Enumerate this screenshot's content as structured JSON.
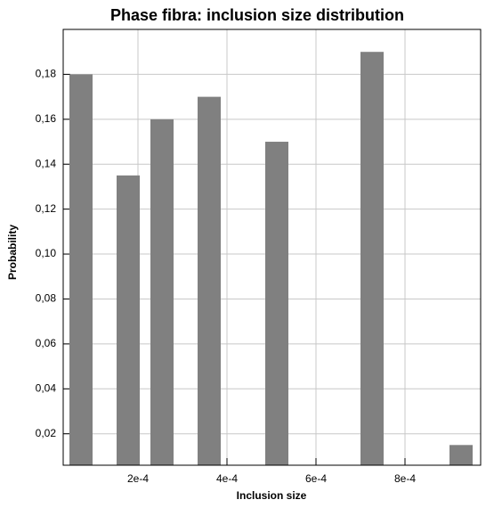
{
  "chart_data": {
    "type": "bar",
    "title": "Phase fibra: inclusion size distribution",
    "x_label": "Inclusion size",
    "y_label": "Probability",
    "x": [
      7.2e-05,
      0.000178,
      0.000254,
      0.00036,
      0.000512,
      0.000726,
      0.000926
    ],
    "values": [
      0.18,
      0.135,
      0.16,
      0.17,
      0.15,
      0.19,
      0.015
    ],
    "bar_width": 5.2e-05,
    "color": "#808080",
    "xlim": [
      3.2e-05,
      0.00097
    ],
    "xticks": [
      {
        "value": 0.0002,
        "label": "2e-4"
      },
      {
        "value": 0.0004,
        "label": "4e-4"
      },
      {
        "value": 0.0006,
        "label": "6e-4"
      },
      {
        "value": 0.0008,
        "label": "8e-4"
      }
    ],
    "ylim": [
      0.006,
      0.2
    ],
    "yticks": [
      {
        "value": 0.02,
        "label": "0,02"
      },
      {
        "value": 0.04,
        "label": "0,04"
      },
      {
        "value": 0.06,
        "label": "0,06"
      },
      {
        "value": 0.08,
        "label": "0,08"
      },
      {
        "value": 0.1,
        "label": "0,10"
      },
      {
        "value": 0.12,
        "label": "0,12"
      },
      {
        "value": 0.14,
        "label": "0,14"
      },
      {
        "value": 0.16,
        "label": "0,16"
      },
      {
        "value": 0.18,
        "label": "0,18"
      }
    ],
    "grid": true
  }
}
